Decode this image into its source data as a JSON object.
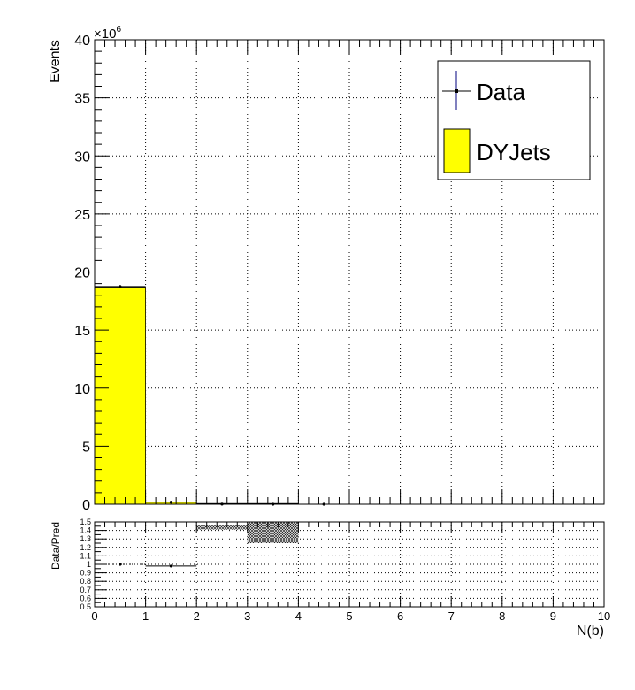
{
  "chart_data": [
    {
      "type": "bar",
      "panel": "main",
      "ylabel": "Events",
      "y_multiplier_label": "×10",
      "y_multiplier_exponent": "6",
      "xlim": [
        0,
        10
      ],
      "ylim": [
        0,
        40
      ],
      "y_unit_scale": 1000000,
      "y_ticks": [
        0,
        5,
        10,
        15,
        20,
        25,
        30,
        35,
        40
      ],
      "grid": true,
      "legend_position": "top-right",
      "legend": [
        {
          "label": "Data",
          "marker": "errorbar-point",
          "color": "#000000",
          "errorbar_color": "#00007f"
        },
        {
          "label": "DYJets",
          "marker": "filled-box",
          "color": "#ffff00"
        }
      ],
      "series": [
        {
          "name": "DYJets",
          "kind": "histogram",
          "color": "#ffff00",
          "bins": [
            [
              0,
              1
            ],
            [
              1,
              2
            ],
            [
              2,
              3
            ],
            [
              3,
              4
            ],
            [
              4,
              5
            ],
            [
              5,
              6
            ],
            [
              6,
              7
            ],
            [
              7,
              8
            ],
            [
              8,
              9
            ],
            [
              9,
              10
            ]
          ],
          "values": [
            18.7,
            0.18,
            0.005,
            0.0005,
            0,
            0,
            0,
            0,
            0,
            0
          ]
        },
        {
          "name": "Data",
          "kind": "points",
          "color": "#000000",
          "x": [
            0.5,
            1.5,
            2.5,
            3.5,
            4.5
          ],
          "values": [
            18.75,
            0.17,
            0.007,
            0.0007,
            0.0001
          ]
        }
      ]
    },
    {
      "type": "scatter",
      "panel": "ratio",
      "ylabel": "Data/Pred",
      "xlabel": "N(b)",
      "xlim": [
        0,
        10
      ],
      "ylim": [
        0.5,
        1.5
      ],
      "x_ticks": [
        0,
        1,
        2,
        3,
        4,
        5,
        6,
        7,
        8,
        9,
        10
      ],
      "y_ticks": [
        0.5,
        0.6,
        0.7,
        0.8,
        0.9,
        1,
        1.1,
        1.2,
        1.3,
        1.4,
        1.5
      ],
      "y_tick_labels": [
        "0.5",
        "0.6",
        "0.7",
        "0.8",
        "0.9",
        "1",
        "1.1",
        "1.2",
        "1.3",
        "1.4",
        "1.5"
      ],
      "grid": true,
      "series": [
        {
          "name": "Data/Pred",
          "x": [
            0.5,
            1.5
          ],
          "values": [
            1.0,
            0.98
          ],
          "xerr": [
            0.5,
            0.5
          ]
        }
      ],
      "uncertainty_bands": [
        {
          "x_range": [
            2,
            3
          ],
          "y_range": [
            1.41,
            1.46
          ]
        },
        {
          "x_range": [
            3,
            4
          ],
          "y_range": [
            1.25,
            1.5
          ]
        }
      ]
    }
  ]
}
